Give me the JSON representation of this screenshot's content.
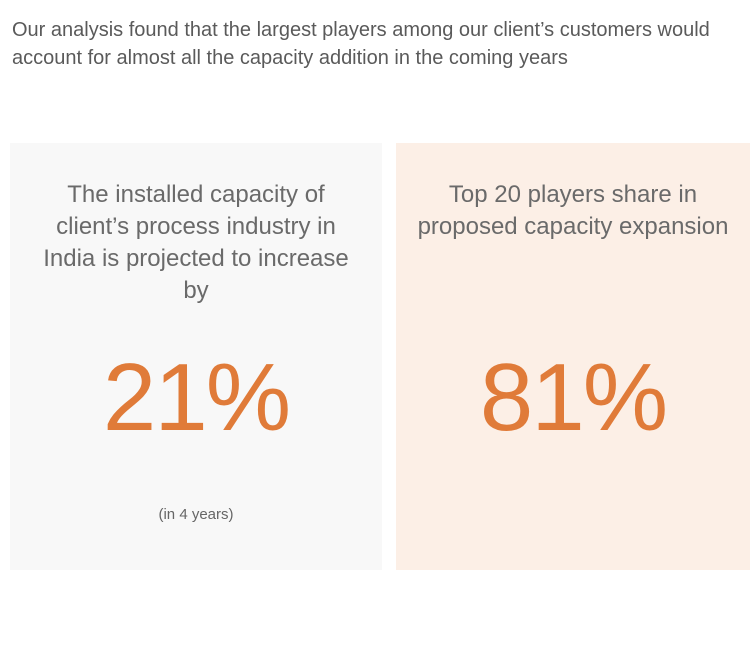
{
  "headline": "Our analysis found that the largest players among our client’s customers would account for almost all the capacity addition in the coming years",
  "cards": [
    {
      "description": "The installed capacity of client’s process industry in India is projected to increase by",
      "value": "21%",
      "note": "(in 4 years)"
    },
    {
      "description": "Top 20 players share in proposed capacity expansion",
      "value": "81%"
    }
  ],
  "colors": {
    "accent": "#e07b39",
    "left_card_bg": "#f8f8f8",
    "right_card_bg": "#fcefe6"
  }
}
